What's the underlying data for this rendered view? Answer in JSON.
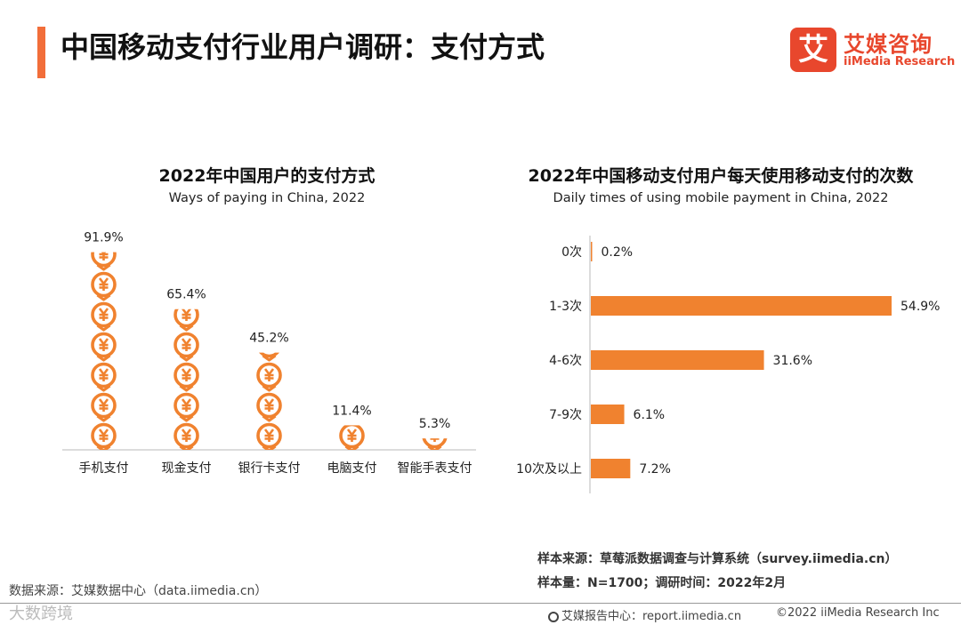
{
  "header": {
    "title": "中国移动支付行业用户调研：支付方式",
    "accent_color": "#f26e3a"
  },
  "logo": {
    "mark": "艾",
    "name_cn": "艾媒咨询",
    "name_en": "iiMedia Research",
    "color": "#e8472d"
  },
  "chart_data": [
    {
      "type": "bar",
      "title": "2022年中国用户的支付方式",
      "subtitle": "Ways of paying in China, 2022",
      "categories": [
        "手机支付",
        "现金支付",
        "银行卡支付",
        "电脑支付",
        "智能手表支付"
      ],
      "values": [
        91.9,
        65.4,
        45.2,
        11.4,
        5.3
      ],
      "value_labels": [
        "91.9%",
        "65.4%",
        "45.2%",
        "11.4%",
        "5.3%"
      ],
      "ylim": [
        0,
        100
      ],
      "mark": "yen-coin-icon",
      "color": "#f0822f",
      "grid": false
    },
    {
      "type": "bar",
      "orientation": "horizontal",
      "title": "2022年中国移动支付用户每天使用移动支付的次数",
      "subtitle": "Daily times of using mobile payment in China, 2022",
      "categories": [
        "0次",
        "1-3次",
        "4-6次",
        "7-9次",
        "10次及以上"
      ],
      "values": [
        0.2,
        54.9,
        31.6,
        6.1,
        7.2
      ],
      "value_labels": [
        "0.2%",
        "54.9%",
        "31.6%",
        "6.1%",
        "7.2%"
      ],
      "xlim": [
        0,
        54.9
      ],
      "color": "#f0822f",
      "grid": false
    }
  ],
  "notes": {
    "sample_source": "样本来源：草莓派数据调查与计算系统（survey.iimedia.cn）",
    "sample_size": "样本量：N=1700；调研时间：2022年2月"
  },
  "footer": {
    "data_source": "数据来源：艾媒数据中心（data.iimedia.cn）",
    "watermark": "大数跨境",
    "report_center": "艾媒报告中心：report.iimedia.cn",
    "copyright": "©2022  iiMedia Research Inc"
  }
}
